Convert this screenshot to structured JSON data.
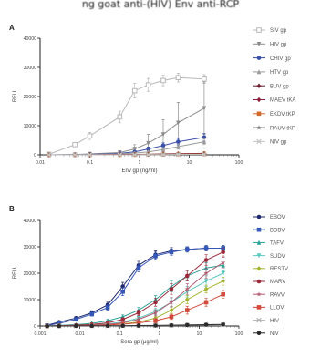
{
  "top_caption": "ng goat anti-(HIV) Env anti-RCP",
  "chart_data": [
    {
      "panel": "A",
      "type": "line",
      "xlabel": "Env gp (ng/ml)",
      "ylabel": "RFU",
      "x_scale": "log",
      "xlim": [
        0.01,
        100
      ],
      "ylim": [
        0,
        40000
      ],
      "x_ticks": [
        0.01,
        0.1,
        1,
        10,
        100
      ],
      "x_tick_labels": [
        "0.01",
        "0.1",
        "1",
        "10",
        "100"
      ],
      "y_ticks": [
        0,
        10000,
        20000,
        30000,
        40000
      ],
      "y_tick_labels": [
        "0",
        "10000",
        "20000",
        "30000",
        "40000"
      ],
      "series": [
        {
          "name": "SIV gp",
          "color": "#b8b8b8",
          "marker": "square-open",
          "x": [
            0.015,
            0.05,
            0.1,
            0.4,
            0.8,
            1.5,
            3,
            6,
            20
          ],
          "y": [
            200,
            3500,
            6500,
            13000,
            22000,
            24000,
            25500,
            26500,
            26000
          ],
          "err": [
            300,
            700,
            1200,
            2000,
            2500,
            2200,
            1800,
            1500,
            1500
          ]
        },
        {
          "name": "HIV gp",
          "color": "#8c8c8c",
          "marker": "triangle-down",
          "x": [
            0.015,
            0.05,
            0.1,
            0.4,
            0.8,
            1.5,
            3,
            6,
            20
          ],
          "y": [
            0,
            100,
            300,
            800,
            2000,
            4000,
            7000,
            11000,
            16000
          ],
          "err": [
            0,
            200,
            300,
            600,
            1500,
            3000,
            5000,
            7000,
            9000
          ]
        },
        {
          "name": "CHIV gp",
          "color": "#3a4fa8",
          "marker": "circle",
          "x": [
            0.015,
            0.05,
            0.1,
            0.4,
            0.8,
            1.5,
            3,
            6,
            20
          ],
          "y": [
            0,
            100,
            200,
            500,
            1000,
            2000,
            3200,
            4500,
            6000
          ],
          "err": [
            0,
            100,
            150,
            300,
            500,
            700,
            900,
            1100,
            1300
          ]
        },
        {
          "name": "HTV gp",
          "color": "#9a9a9a",
          "marker": "triangle-up",
          "x": [
            0.015,
            0.05,
            0.1,
            0.4,
            0.8,
            1.5,
            3,
            6,
            20
          ],
          "y": [
            0,
            100,
            150,
            300,
            600,
            1000,
            1800,
            2800,
            4500
          ],
          "err": [
            0,
            80,
            100,
            200,
            300,
            500,
            700,
            900,
            1000
          ]
        },
        {
          "name": "BUV gp",
          "color": "#6a1b2a",
          "marker": "plus",
          "x": [
            0.015,
            0.05,
            0.1,
            0.4,
            0.8,
            1.5,
            3,
            6,
            20
          ],
          "y": [
            0,
            0,
            50,
            100,
            150,
            200,
            300,
            400,
            500
          ],
          "err": [
            0,
            0,
            50,
            50,
            80,
            100,
            120,
            150,
            200
          ]
        },
        {
          "name": "MAEV tKA",
          "color": "#8b1f3a",
          "marker": "diamond",
          "x": [
            0.015,
            0.05,
            0.1,
            0.4,
            0.8,
            1.5,
            3,
            6,
            20
          ],
          "y": [
            0,
            0,
            0,
            50,
            100,
            150,
            200,
            300,
            400
          ],
          "err": [
            0,
            0,
            0,
            50,
            50,
            80,
            100,
            120,
            150
          ]
        },
        {
          "name": "EKDV tKP",
          "color": "#d06a2a",
          "marker": "square",
          "x": [
            0.015,
            0.05,
            0.1,
            0.4,
            0.8,
            1.5,
            3,
            6,
            20
          ],
          "y": [
            0,
            0,
            0,
            50,
            50,
            100,
            150,
            200,
            300
          ],
          "err": [
            0,
            0,
            0,
            30,
            50,
            50,
            80,
            100,
            120
          ]
        },
        {
          "name": "RAUV tKP",
          "color": "#707070",
          "marker": "star",
          "x": [
            0.015,
            0.05,
            0.1,
            0.4,
            0.8,
            1.5,
            3,
            6,
            20
          ],
          "y": [
            0,
            0,
            0,
            0,
            50,
            50,
            100,
            150,
            200
          ],
          "err": [
            0,
            0,
            0,
            0,
            30,
            50,
            50,
            80,
            100
          ]
        },
        {
          "name": "NIV gp",
          "color": "#c4c4c4",
          "marker": "x",
          "x": [
            0.015,
            0.05,
            0.1,
            0.4,
            0.8,
            1.5,
            3,
            6,
            20
          ],
          "y": [
            0,
            0,
            0,
            0,
            0,
            50,
            50,
            100,
            150
          ],
          "err": [
            0,
            0,
            0,
            0,
            0,
            30,
            40,
            50,
            60
          ]
        }
      ]
    },
    {
      "panel": "B",
      "type": "line",
      "xlabel": "Sera gp (μg/ml)",
      "ylabel": "RFU",
      "x_scale": "log",
      "xlim": [
        0.001,
        100
      ],
      "ylim": [
        0,
        40000
      ],
      "x_ticks": [
        0.001,
        0.01,
        0.1,
        1,
        10,
        100
      ],
      "x_tick_labels": [
        "0.001",
        "0.01",
        "0.1",
        "1",
        "10",
        "100"
      ],
      "y_ticks": [
        0,
        10000,
        20000,
        30000,
        40000
      ],
      "y_tick_labels": [
        "0",
        "10000",
        "20000",
        "30000",
        "40000"
      ],
      "series": [
        {
          "name": "EBOV",
          "color": "#1f2a6b",
          "marker": "circle",
          "x": [
            0.0015,
            0.003,
            0.008,
            0.02,
            0.05,
            0.12,
            0.3,
            0.8,
            2,
            5,
            15,
            40
          ],
          "y": [
            300,
            1500,
            3000,
            5000,
            8000,
            15000,
            23000,
            27000,
            28500,
            29000,
            29500,
            29500
          ],
          "err": [
            100,
            300,
            500,
            800,
            1000,
            1500,
            1500,
            1500,
            1200,
            1000,
            1000,
            1000
          ]
        },
        {
          "name": "BDBV",
          "color": "#3557b7",
          "marker": "square",
          "x": [
            0.0015,
            0.003,
            0.008,
            0.02,
            0.05,
            0.12,
            0.3,
            0.8,
            2,
            5,
            15,
            40
          ],
          "y": [
            200,
            1000,
            2500,
            4500,
            7000,
            13000,
            22000,
            26500,
            28000,
            29000,
            29500,
            29500
          ],
          "err": [
            100,
            300,
            500,
            700,
            1000,
            1500,
            1500,
            1500,
            1200,
            1000,
            1000,
            1000
          ]
        },
        {
          "name": "TAFV",
          "color": "#2aa198",
          "marker": "triangle-up",
          "x": [
            0.0015,
            0.003,
            0.008,
            0.02,
            0.05,
            0.12,
            0.3,
            0.8,
            2,
            5,
            15,
            40
          ],
          "y": [
            0,
            200,
            500,
            1000,
            2000,
            3500,
            6000,
            10000,
            15000,
            19000,
            22000,
            23000
          ],
          "err": [
            0,
            100,
            200,
            300,
            500,
            700,
            1000,
            1500,
            2000,
            2000,
            2000,
            2000
          ]
        },
        {
          "name": "SUDV",
          "color": "#5bc8c0",
          "marker": "triangle-down",
          "x": [
            0.0015,
            0.003,
            0.008,
            0.02,
            0.05,
            0.12,
            0.3,
            0.8,
            2,
            5,
            15,
            40
          ],
          "y": [
            0,
            100,
            200,
            400,
            800,
            1500,
            3000,
            5500,
            9000,
            13000,
            17000,
            20000
          ],
          "err": [
            0,
            50,
            100,
            200,
            300,
            500,
            800,
            1200,
            1500,
            2000,
            2000,
            2000
          ]
        },
        {
          "name": "RESTV",
          "color": "#a3b32a",
          "marker": "diamond",
          "x": [
            0.0015,
            0.003,
            0.008,
            0.02,
            0.05,
            0.12,
            0.3,
            0.8,
            2,
            5,
            15,
            40
          ],
          "y": [
            0,
            50,
            100,
            200,
            400,
            800,
            1500,
            3000,
            6000,
            10000,
            14000,
            17000
          ],
          "err": [
            0,
            50,
            80,
            100,
            200,
            400,
            600,
            900,
            1200,
            1500,
            1500,
            1500
          ]
        },
        {
          "name": "MARV",
          "color": "#9c2a3b",
          "marker": "circle",
          "x": [
            0.0015,
            0.003,
            0.008,
            0.02,
            0.05,
            0.12,
            0.3,
            0.8,
            2,
            5,
            15,
            40
          ],
          "y": [
            0,
            100,
            300,
            600,
            1200,
            2500,
            5000,
            9000,
            14000,
            19000,
            25000,
            28000
          ],
          "err": [
            0,
            50,
            100,
            200,
            400,
            600,
            1000,
            1500,
            2000,
            2000,
            2000,
            1500
          ]
        },
        {
          "name": "RAVV",
          "color": "#b05a70",
          "marker": "star",
          "x": [
            0.0015,
            0.003,
            0.008,
            0.02,
            0.05,
            0.12,
            0.3,
            0.8,
            2,
            5,
            15,
            40
          ],
          "y": [
            0,
            50,
            150,
            300,
            600,
            1200,
            2500,
            5000,
            9000,
            14000,
            20000,
            24000
          ],
          "err": [
            0,
            50,
            80,
            150,
            300,
            500,
            800,
            1200,
            1800,
            2000,
            2000,
            2000
          ]
        },
        {
          "name": "LLOV",
          "color": "#d14a3a",
          "marker": "square",
          "x": [
            0.0015,
            0.003,
            0.008,
            0.02,
            0.05,
            0.12,
            0.3,
            0.8,
            2,
            5,
            15,
            40
          ],
          "y": [
            0,
            50,
            100,
            200,
            400,
            700,
            1200,
            2000,
            3500,
            6000,
            9000,
            12000
          ],
          "err": [
            0,
            50,
            50,
            100,
            200,
            300,
            500,
            800,
            1000,
            1500,
            1500,
            1500
          ]
        },
        {
          "name": "HIV",
          "color": "#b0b0b0",
          "marker": "x",
          "x": [
            0.0015,
            0.003,
            0.008,
            0.02,
            0.05,
            0.12,
            0.3,
            0.8,
            2,
            5,
            15,
            40
          ],
          "y": [
            0,
            0,
            0,
            50,
            50,
            100,
            100,
            150,
            200,
            300,
            400,
            500
          ],
          "err": [
            0,
            0,
            0,
            30,
            30,
            50,
            50,
            80,
            100,
            150,
            200,
            200
          ]
        },
        {
          "name": "NiV",
          "color": "#2a2a2a",
          "marker": "circle",
          "x": [
            0.0015,
            0.003,
            0.008,
            0.02,
            0.05,
            0.12,
            0.3,
            0.8,
            2,
            5,
            15,
            40
          ],
          "y": [
            0,
            0,
            50,
            50,
            100,
            100,
            150,
            200,
            300,
            400,
            500,
            600
          ],
          "err": [
            0,
            0,
            30,
            30,
            50,
            50,
            80,
            100,
            150,
            200,
            200,
            200
          ]
        }
      ]
    }
  ]
}
